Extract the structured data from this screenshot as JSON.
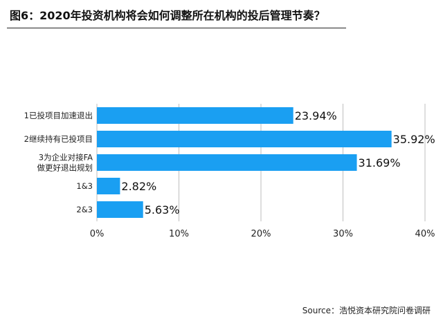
{
  "title": "图6：2020年投资机构将会如何调整所在机构的投后管理节奏？",
  "source": "Source：浩悦资本研究院问卷调研",
  "chart_data": {
    "type": "bar",
    "orientation": "horizontal",
    "title": "图6：2020年投资机构将会如何调整所在机构的投后管理节奏？",
    "categories": [
      [
        "1已投项目加速退出"
      ],
      [
        "2继续持有已投项目"
      ],
      [
        "3为企业对接FA",
        "做更好退出规划"
      ],
      [
        "1&3"
      ],
      [
        "2&3"
      ]
    ],
    "values": [
      23.94,
      35.92,
      31.69,
      2.82,
      5.63
    ],
    "value_labels": [
      "23.94%",
      "35.92%",
      "31.69%",
      "2.82%",
      "5.63%"
    ],
    "xlim": [
      0,
      40
    ],
    "xticks": [
      0,
      10,
      20,
      30,
      40
    ],
    "xtick_labels": [
      "0%",
      "10%",
      "20%",
      "30%",
      "40%"
    ],
    "xlabel": "",
    "ylabel": "",
    "grid": "vertical",
    "bar_color": "#1a9ff2",
    "grid_color": "#bdbdbd"
  }
}
